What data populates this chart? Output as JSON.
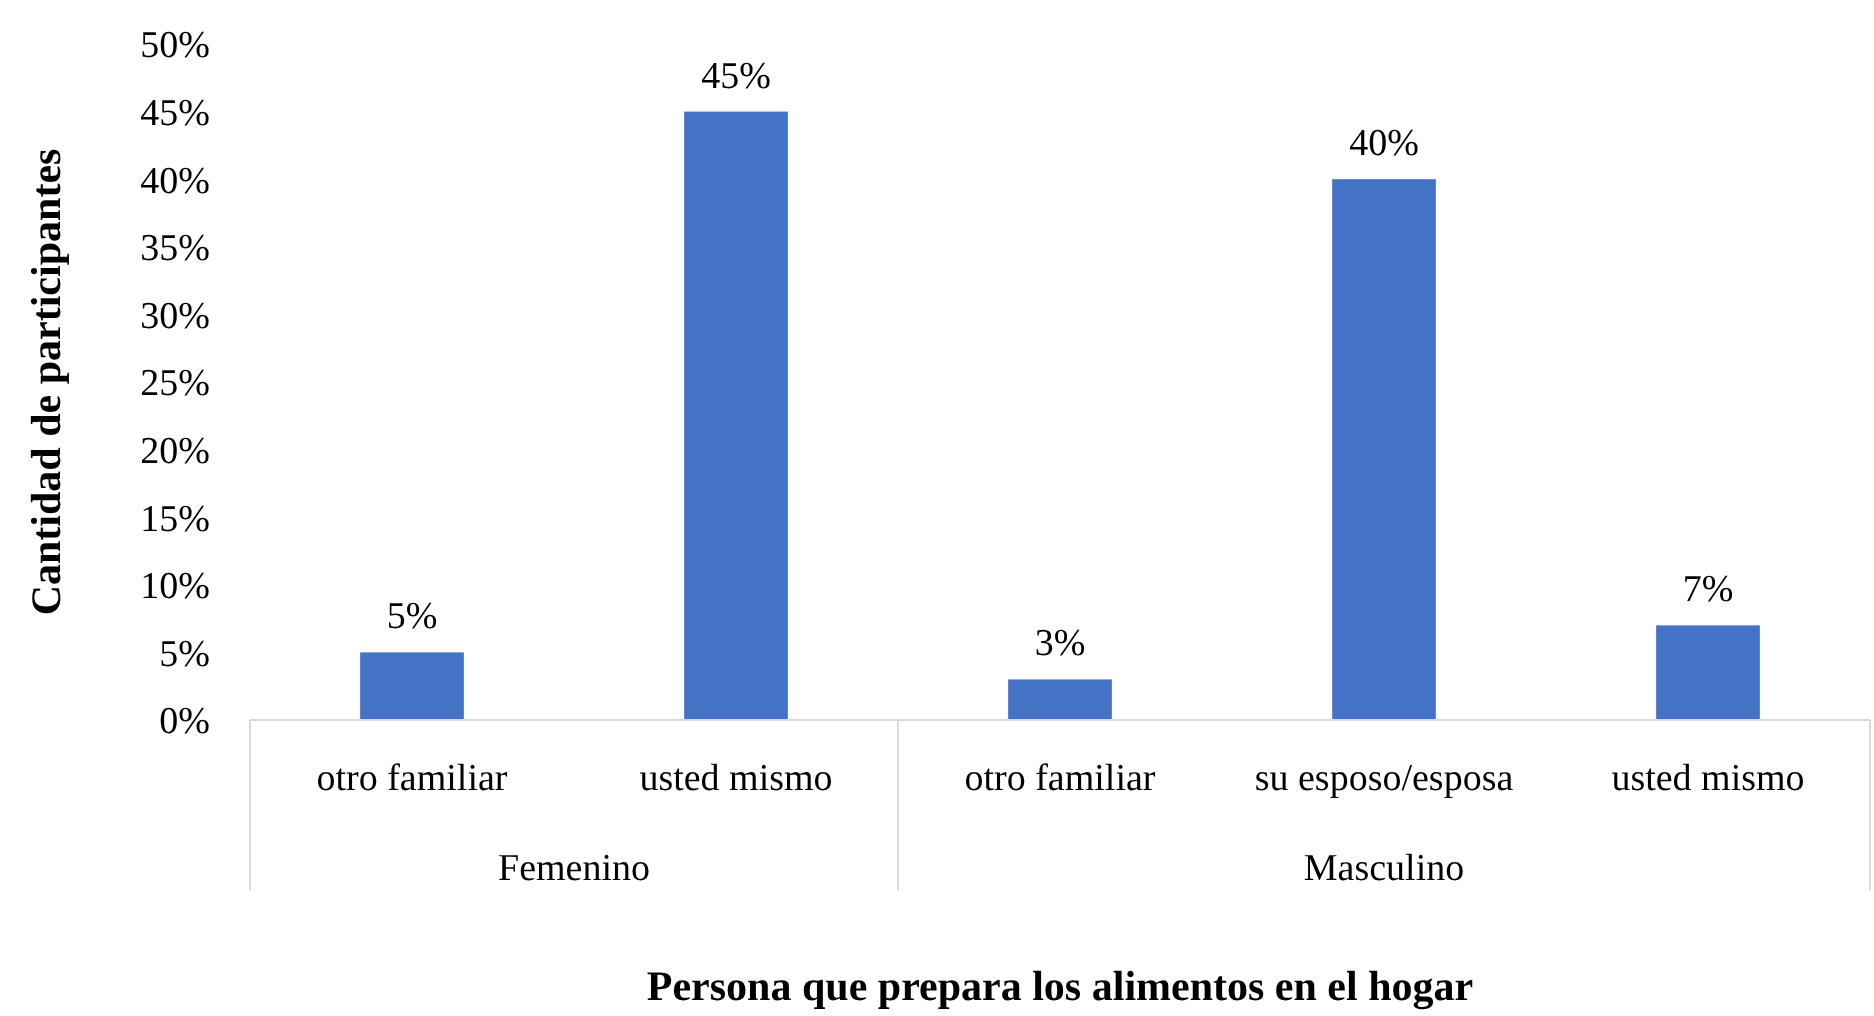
{
  "chart_data": {
    "type": "bar",
    "xlabel": "Persona que prepara los alimentos en el hogar",
    "ylabel": "Cantidad de participantes",
    "categories": [
      "otro familiar",
      "usted mismo",
      "otro familiar",
      "su esposo/esposa",
      "usted mismo"
    ],
    "values": [
      5,
      45,
      3,
      40,
      7
    ],
    "color": "#4472c4",
    "value_labels": [
      "5%",
      "45%",
      "3%",
      "40%",
      "7%"
    ],
    "ylim": [
      0,
      50
    ],
    "yticks": [
      {
        "value": 0,
        "label": "0%"
      },
      {
        "value": 5,
        "label": "5%"
      },
      {
        "value": 10,
        "label": "10%"
      },
      {
        "value": 15,
        "label": "15%"
      },
      {
        "value": 20,
        "label": "20%"
      },
      {
        "value": 25,
        "label": "25%"
      },
      {
        "value": 30,
        "label": "30%"
      },
      {
        "value": 35,
        "label": "35%"
      },
      {
        "value": 40,
        "label": "40%"
      },
      {
        "value": 45,
        "label": "45%"
      },
      {
        "value": 50,
        "label": "50%"
      }
    ],
    "annotations": [
      "Femenino",
      "Masculino"
    ],
    "grid": false
  }
}
